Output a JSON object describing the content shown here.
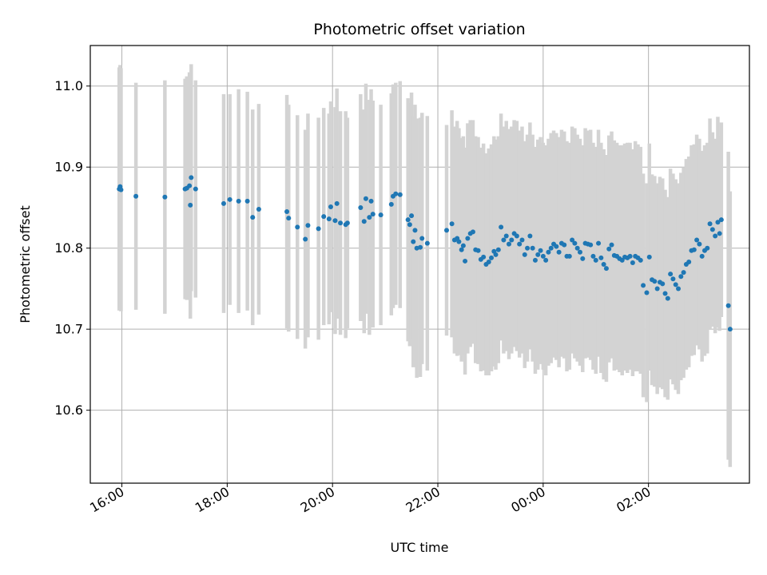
{
  "chart_data": {
    "type": "scatter",
    "title": "Photometric offset variation",
    "xlabel": "UTC time",
    "ylabel": "Photometric offset",
    "ylim": [
      10.51,
      11.05
    ],
    "x_axis": {
      "kind": "time",
      "start_date": "2020-01-01",
      "range": [
        "15:24",
        "03:55 +1"
      ],
      "ticks": [
        "16:00",
        "18:00",
        "20:00",
        "22:00",
        "00:00",
        "02:00"
      ],
      "tick_rotation_deg": 30
    },
    "y_ticks": [
      "10.6",
      "10.7",
      "10.8",
      "10.9",
      "11.0"
    ],
    "grid": true,
    "colors": {
      "points": "#1f77b4",
      "errorbars": "#d3d3d3"
    },
    "series": [
      {
        "x": [
          "15:57",
          "15:58",
          "15:59",
          "16:16",
          "16:49",
          "17:12",
          "17:14",
          "17:17",
          "17:18",
          "17:19",
          "17:24",
          "17:56",
          "18:03",
          "18:13",
          "18:23",
          "18:29",
          "18:36",
          "19:08",
          "19:10",
          "19:20",
          "19:29",
          "19:32",
          "19:44",
          "19:50",
          "19:56",
          "19:58",
          "20:03",
          "20:05",
          "20:09",
          "20:15",
          "20:17",
          "20:32",
          "20:36",
          "20:38",
          "20:42",
          "20:44",
          "20:46",
          "20:55",
          "21:07",
          "21:09",
          "21:12",
          "21:17",
          "21:26",
          "21:28",
          "21:30",
          "21:32",
          "21:34",
          "21:36",
          "21:40",
          "21:42",
          "21:48",
          "22:10",
          "22:16",
          "22:19",
          "22:22",
          "22:24",
          "22:27",
          "22:29",
          "22:31",
          "22:34",
          "22:37",
          "22:40",
          "22:43",
          "22:46",
          "22:49",
          "22:52",
          "22:55",
          "22:58",
          "23:01",
          "23:04",
          "23:06",
          "23:09",
          "23:12",
          "23:15",
          "23:18",
          "23:21",
          "23:24",
          "23:27",
          "23:30",
          "23:33",
          "23:36",
          "23:39",
          "23:42",
          "23:45",
          "23:48",
          "23:51",
          "23:54",
          "23:57",
          "00:00",
          "00:03",
          "00:06",
          "00:09",
          "00:12",
          "00:15",
          "00:18",
          "00:21",
          "00:24",
          "00:27",
          "00:30",
          "00:33",
          "00:36",
          "00:39",
          "00:42",
          "00:45",
          "00:48",
          "00:51",
          "00:54",
          "00:57",
          "01:00",
          "01:03",
          "01:06",
          "01:09",
          "01:12",
          "01:15",
          "01:18",
          "01:21",
          "01:24",
          "01:27",
          "01:30",
          "01:33",
          "01:36",
          "01:39",
          "01:42",
          "01:45",
          "01:48",
          "01:51",
          "01:54",
          "01:58",
          "02:01",
          "02:04",
          "02:07",
          "02:10",
          "02:13",
          "02:16",
          "02:19",
          "02:22",
          "02:25",
          "02:28",
          "02:31",
          "02:34",
          "02:37",
          "02:40",
          "02:43",
          "02:46",
          "02:49",
          "02:52",
          "02:55",
          "02:58",
          "03:01",
          "03:04",
          "03:07",
          "03:10",
          "03:13",
          "03:16",
          "03:19",
          "03:21",
          "03:23",
          "03:31",
          "03:33"
        ],
        "y": [
          10.873,
          10.876,
          10.872,
          10.864,
          10.863,
          10.873,
          10.874,
          10.877,
          10.853,
          10.887,
          10.873,
          10.855,
          10.86,
          10.858,
          10.858,
          10.838,
          10.848,
          10.845,
          10.837,
          10.826,
          10.811,
          10.828,
          10.824,
          10.839,
          10.836,
          10.851,
          10.834,
          10.855,
          10.831,
          10.829,
          10.831,
          10.85,
          10.833,
          10.861,
          10.838,
          10.858,
          10.842,
          10.841,
          10.854,
          10.864,
          10.867,
          10.866,
          10.835,
          10.829,
          10.84,
          10.808,
          10.822,
          10.8,
          10.801,
          10.812,
          10.806,
          10.822,
          10.83,
          10.81,
          10.812,
          10.808,
          10.798,
          10.803,
          10.784,
          10.812,
          10.818,
          10.82,
          10.798,
          10.797,
          10.786,
          10.789,
          10.78,
          10.783,
          10.788,
          10.796,
          10.792,
          10.798,
          10.826,
          10.81,
          10.815,
          10.805,
          10.81,
          10.818,
          10.815,
          10.805,
          10.81,
          10.792,
          10.8,
          10.815,
          10.8,
          10.785,
          10.792,
          10.797,
          10.79,
          10.785,
          10.795,
          10.8,
          10.805,
          10.802,
          10.795,
          10.806,
          10.804,
          10.79,
          10.79,
          10.81,
          10.806,
          10.8,
          10.795,
          10.787,
          10.806,
          10.805,
          10.804,
          10.79,
          10.785,
          10.806,
          10.788,
          10.78,
          10.775,
          10.799,
          10.804,
          10.791,
          10.79,
          10.787,
          10.785,
          10.789,
          10.788,
          10.79,
          10.782,
          10.79,
          10.788,
          10.785,
          10.754,
          10.745,
          10.789,
          10.761,
          10.759,
          10.75,
          10.758,
          10.756,
          10.744,
          10.738,
          10.768,
          10.762,
          10.755,
          10.75,
          10.765,
          10.77,
          10.78,
          10.783,
          10.797,
          10.798,
          10.81,
          10.805,
          10.79,
          10.797,
          10.8,
          10.83,
          10.823,
          10.815,
          10.832,
          10.818,
          10.835,
          10.729,
          10.7
        ],
        "error": [
          0.15,
          0.15,
          0.15,
          0.14,
          0.144,
          0.136,
          0.138,
          0.14,
          0.14,
          0.14,
          0.134,
          0.135,
          0.13,
          0.138,
          0.135,
          0.133,
          0.13,
          0.144,
          0.14,
          0.138,
          0.135,
          0.138,
          0.137,
          0.134,
          0.13,
          0.13,
          0.14,
          0.142,
          0.138,
          0.14,
          0.13,
          0.14,
          0.138,
          0.142,
          0.145,
          0.138,
          0.14,
          0.136,
          0.137,
          0.138,
          0.137,
          0.14,
          0.15,
          0.15,
          0.152,
          0.155,
          0.155,
          0.16,
          0.16,
          0.155,
          0.157,
          0.13,
          0.14,
          0.14,
          0.145,
          0.14,
          0.138,
          0.135,
          0.14,
          0.142,
          0.14,
          0.138,
          0.14,
          0.14,
          0.138,
          0.14,
          0.137,
          0.14,
          0.14,
          0.142,
          0.142,
          0.14,
          0.14,
          0.14,
          0.142,
          0.142,
          0.14,
          0.14,
          0.142,
          0.14,
          0.14,
          0.14,
          0.14,
          0.14,
          0.14,
          0.14,
          0.142,
          0.14,
          0.14,
          0.142,
          0.14,
          0.142,
          0.14,
          0.14,
          0.142,
          0.14,
          0.14,
          0.142,
          0.14,
          0.14,
          0.142,
          0.14,
          0.14,
          0.14,
          0.142,
          0.14,
          0.142,
          0.14,
          0.14,
          0.14,
          0.142,
          0.142,
          0.14,
          0.14,
          0.14,
          0.142,
          0.14,
          0.14,
          0.142,
          0.14,
          0.142,
          0.14,
          0.14,
          0.142,
          0.14,
          0.14,
          0.138,
          0.135,
          0.14,
          0.13,
          0.13,
          0.13,
          0.13,
          0.13,
          0.128,
          0.125,
          0.13,
          0.13,
          0.13,
          0.13,
          0.128,
          0.13,
          0.13,
          0.13,
          0.13,
          0.13,
          0.13,
          0.13,
          0.13,
          0.13,
          0.13,
          0.13,
          0.12,
          0.12,
          0.13,
          0.12,
          0.12,
          0.19,
          0.17
        ]
      }
    ]
  }
}
